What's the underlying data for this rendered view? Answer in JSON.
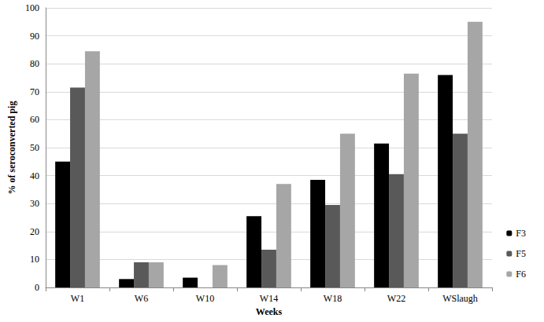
{
  "chart_data": {
    "type": "bar",
    "x_label": "Weeks",
    "y_label": "% of seroconverted pig",
    "categories": [
      "W1",
      "W6",
      "W10",
      "W14",
      "W18",
      "W22",
      "WSlaugh"
    ],
    "series": [
      {
        "name": "F3",
        "color": "#000000",
        "values": [
          45,
          3,
          3.5,
          25.5,
          38.5,
          51.5,
          76
        ]
      },
      {
        "name": "F5",
        "color": "#595959",
        "values": [
          71.5,
          9,
          0,
          13.5,
          29.5,
          40.5,
          55
        ]
      },
      {
        "name": "F6",
        "color": "#a6a6a6",
        "values": [
          84.5,
          9,
          8,
          37,
          55,
          76.5,
          95
        ]
      }
    ],
    "ylim": [
      0,
      100
    ],
    "yticks": [
      0,
      10,
      20,
      30,
      40,
      50,
      60,
      70,
      80,
      90,
      100
    ],
    "grid": true,
    "legend": "right"
  }
}
